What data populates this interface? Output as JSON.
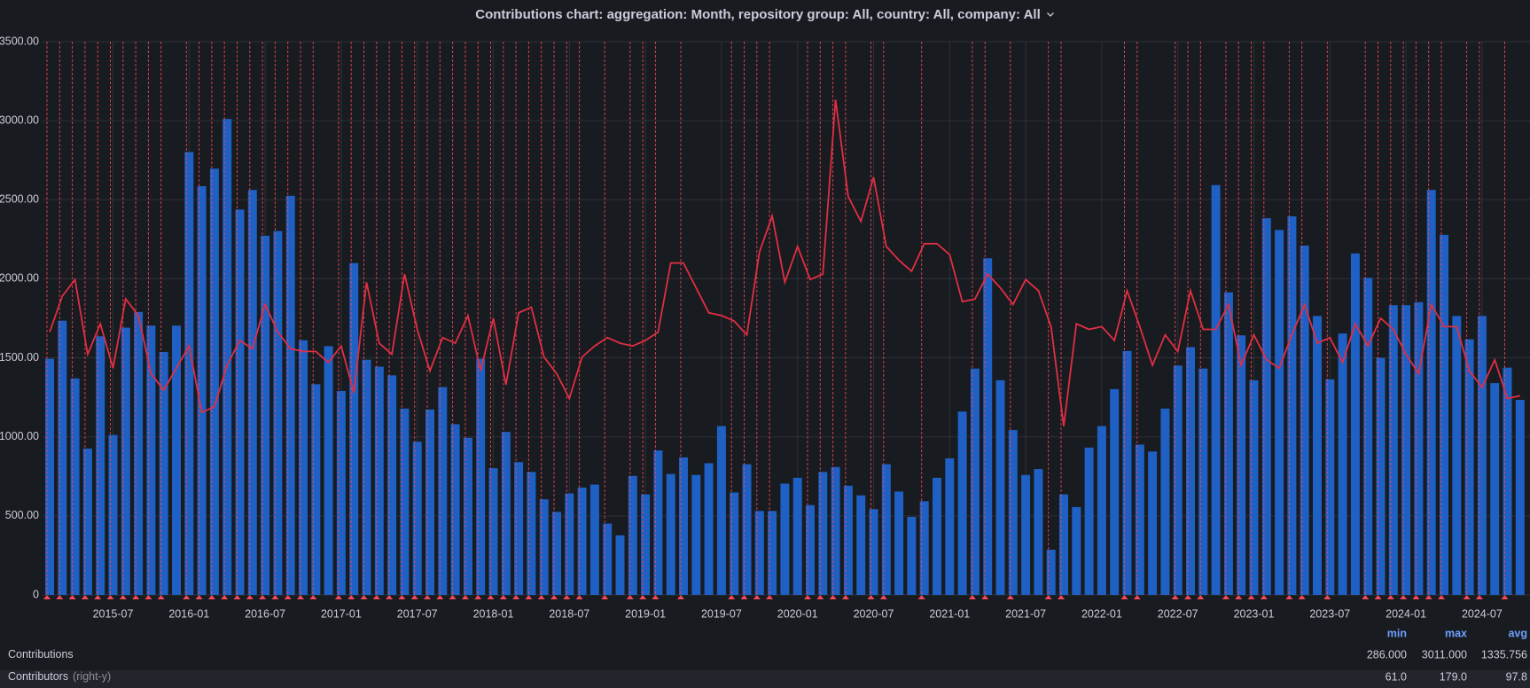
{
  "chart_data": {
    "type": "bar_line",
    "title": "Contributions chart: aggregation: Month, repository group: All, country: All, company: All",
    "x": [
      "2015-02",
      "2015-03",
      "2015-04",
      "2015-05",
      "2015-06",
      "2015-07",
      "2015-08",
      "2015-09",
      "2015-10",
      "2015-11",
      "2015-12",
      "2016-01",
      "2016-02",
      "2016-03",
      "2016-04",
      "2016-05",
      "2016-06",
      "2016-07",
      "2016-08",
      "2016-09",
      "2016-10",
      "2016-11",
      "2016-12",
      "2017-01",
      "2017-02",
      "2017-03",
      "2017-04",
      "2017-05",
      "2017-06",
      "2017-07",
      "2017-08",
      "2017-09",
      "2017-10",
      "2017-11",
      "2017-12",
      "2018-01",
      "2018-02",
      "2018-03",
      "2018-04",
      "2018-05",
      "2018-06",
      "2018-07",
      "2018-08",
      "2018-09",
      "2018-10",
      "2018-11",
      "2018-12",
      "2019-01",
      "2019-02",
      "2019-03",
      "2019-04",
      "2019-05",
      "2019-06",
      "2019-07",
      "2019-08",
      "2019-09",
      "2019-10",
      "2019-11",
      "2019-12",
      "2020-01",
      "2020-02",
      "2020-03",
      "2020-04",
      "2020-05",
      "2020-06",
      "2020-07",
      "2020-08",
      "2020-09",
      "2020-10",
      "2020-11",
      "2020-12",
      "2021-01",
      "2021-02",
      "2021-03",
      "2021-04",
      "2021-05",
      "2021-06",
      "2021-07",
      "2021-08",
      "2021-09",
      "2021-10",
      "2021-11",
      "2021-12",
      "2022-01",
      "2022-02",
      "2022-03",
      "2022-04",
      "2022-05",
      "2022-06",
      "2022-07",
      "2022-08",
      "2022-09",
      "2022-10",
      "2022-11",
      "2022-12",
      "2023-01",
      "2023-02",
      "2023-03",
      "2023-04",
      "2023-05",
      "2023-06",
      "2023-07",
      "2023-08",
      "2023-09",
      "2023-10",
      "2023-11",
      "2023-12",
      "2024-01",
      "2024-02",
      "2024-03",
      "2024-04",
      "2024-05",
      "2024-06",
      "2024-07",
      "2024-08",
      "2024-09",
      "2024-10"
    ],
    "xticks": [
      "2015-07",
      "2016-01",
      "2016-07",
      "2017-01",
      "2017-07",
      "2018-01",
      "2018-07",
      "2019-01",
      "2019-07",
      "2020-01",
      "2020-07",
      "2021-01",
      "2021-07",
      "2022-01",
      "2022-07",
      "2023-01",
      "2023-07",
      "2024-01",
      "2024-07"
    ],
    "ylim": [
      0,
      3500
    ],
    "yticks": [
      0,
      {
        "value": 500,
        "label": "500.00"
      },
      {
        "value": 1000,
        "label": "1000.00"
      },
      {
        "value": 1500,
        "label": "1500.00"
      },
      {
        "value": 2000,
        "label": "2000.00"
      },
      {
        "value": 2500,
        "label": "2500.00"
      },
      {
        "value": 3000,
        "label": "3000.00"
      },
      {
        "value": 3500,
        "label": "3500.00"
      }
    ],
    "y2lim": [
      0,
      200
    ],
    "grid": true,
    "legend_columns": [
      "min",
      "max",
      "avg"
    ],
    "series": [
      {
        "name": "Contributions",
        "kind": "bar",
        "color": "#1f60c4",
        "values": [
          1494,
          1735,
          1370,
          926,
          1636,
          1012,
          1691,
          1790,
          1704,
          1537,
          1704,
          2802,
          2586,
          2697,
          3011,
          2438,
          2562,
          2272,
          2302,
          2525,
          1611,
          1333,
          1574,
          1290,
          2099,
          1488,
          1444,
          1389,
          1179,
          969,
          1173,
          1315,
          1080,
          994,
          1494,
          802,
          1031,
          840,
          778,
          605,
          525,
          642,
          679,
          698,
          451,
          377,
          753,
          636,
          914,
          765,
          870,
          759,
          833,
          1068,
          648,
          827,
          531,
          531,
          704,
          741,
          568,
          778,
          809,
          691,
          630,
          543,
          827,
          654,
          494,
          593,
          741,
          864,
          1160,
          1432,
          2130,
          1358,
          1043,
          759,
          796,
          286,
          636,
          556,
          932,
          1068,
          1302,
          1543,
          951,
          907,
          1179,
          1451,
          1568,
          1432,
          2593,
          1914,
          1642,
          1358,
          2383,
          2309,
          2395,
          2210,
          1765,
          1364,
          1654,
          2160,
          2006,
          1500,
          1833,
          1833,
          1852,
          2562,
          2278,
          1765,
          1617,
          1765,
          1340,
          1438,
          1234
        ],
        "legend_values": [
          286,
          3011,
          1335.756
        ],
        "legend_labels": [
          "286.000",
          "3011.000",
          "1335.756"
        ]
      },
      {
        "name": "Contributors",
        "axis_note": "(right-y)",
        "kind": "line",
        "axis": "y2",
        "color": "#e02f44",
        "values": [
          95,
          108,
          114,
          87,
          98,
          82,
          107,
          101,
          80,
          74,
          82,
          90,
          66,
          68,
          83,
          92,
          89,
          105,
          95,
          89,
          88,
          88,
          84,
          90,
          73,
          113,
          91,
          87,
          116,
          96,
          81,
          93,
          91,
          101,
          81,
          100,
          76,
          102,
          104,
          86,
          80,
          71,
          86,
          90,
          93,
          91,
          90,
          92,
          95,
          120,
          120,
          111,
          102,
          101,
          99,
          94,
          124,
          137,
          113,
          126,
          114,
          116,
          179,
          144,
          135,
          151,
          126,
          121,
          117,
          127,
          127,
          123,
          106,
          107,
          116,
          111,
          105,
          114,
          110,
          97,
          61,
          98,
          96,
          97,
          92,
          110,
          97,
          83,
          94,
          88,
          110,
          96,
          96,
          105,
          83,
          94,
          85,
          82,
          94,
          105,
          91,
          93,
          84,
          98,
          90,
          100,
          96,
          87,
          80,
          105,
          97,
          97,
          81,
          75,
          85,
          71,
          72
        ],
        "legend_values": [
          61,
          179,
          97.8
        ],
        "legend_labels": [
          "61.0",
          "179.0",
          "97.8"
        ]
      }
    ],
    "annotation_color": "#f2495c",
    "annotations": [
      "2015-02",
      "2015-03",
      "2015-04",
      "2015-05",
      "2015-06",
      "2015-07",
      "2015-08",
      "2015-09",
      "2015-10",
      "2015-11",
      "2016-01",
      "2016-02",
      "2016-03",
      "2016-04",
      "2016-05",
      "2016-06",
      "2016-07",
      "2016-08",
      "2016-09",
      "2016-10",
      "2016-11",
      "2017-01",
      "2017-02",
      "2017-03",
      "2017-04",
      "2017-05",
      "2017-06",
      "2017-07",
      "2017-08",
      "2017-09",
      "2017-10",
      "2017-11",
      "2017-12",
      "2018-01",
      "2018-02",
      "2018-03",
      "2018-04",
      "2018-05",
      "2018-06",
      "2018-07",
      "2018-08",
      "2018-10",
      "2018-12",
      "2019-01",
      "2019-02",
      "2019-04",
      "2019-08",
      "2019-09",
      "2019-10",
      "2019-11",
      "2020-02",
      "2020-03",
      "2020-04",
      "2020-05",
      "2020-07",
      "2020-08",
      "2020-11",
      "2021-03",
      "2021-04",
      "2021-06",
      "2021-09",
      "2021-10",
      "2022-03",
      "2022-04",
      "2022-07",
      "2022-08",
      "2022-09",
      "2022-11",
      "2022-12",
      "2023-01",
      "2023-02",
      "2023-04",
      "2023-05",
      "2023-07",
      "2023-10",
      "2023-11",
      "2023-12",
      "2024-01",
      "2024-02",
      "2024-03",
      "2024-04",
      "2024-06",
      "2024-07",
      "2024-09"
    ]
  }
}
